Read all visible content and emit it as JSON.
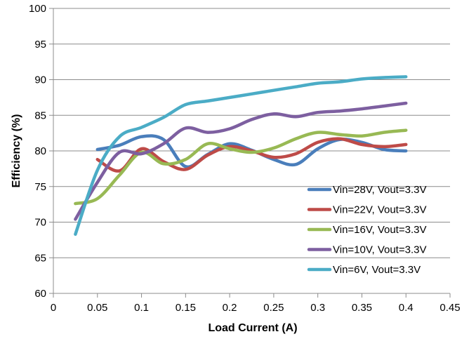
{
  "chart_data": {
    "type": "line",
    "title": "",
    "xlabel": "Load Current (A)",
    "ylabel": "Efficiency (%)",
    "xlim": [
      0,
      0.45
    ],
    "ylim": [
      60,
      100
    ],
    "x_ticks": [
      "0",
      "0.05",
      "0.1",
      "0.15",
      "0.2",
      "0.25",
      "0.3",
      "0.35",
      "0.4",
      "0.45"
    ],
    "y_ticks": [
      "60",
      "65",
      "70",
      "75",
      "80",
      "85",
      "90",
      "95",
      "100"
    ],
    "grid": "horizontal",
    "legend_position": "bottom-right",
    "series": [
      {
        "name": "Vin=28V, Vout=3.3V",
        "color": "#4A7EBB",
        "x": [
          0.05,
          0.075,
          0.1,
          0.125,
          0.15,
          0.175,
          0.2,
          0.225,
          0.25,
          0.275,
          0.3,
          0.325,
          0.35,
          0.375,
          0.4
        ],
        "y": [
          80.2,
          80.8,
          82.0,
          81.6,
          77.8,
          79.5,
          81.0,
          80.1,
          78.8,
          78.1,
          80.3,
          81.6,
          81.2,
          80.2,
          80.0
        ]
      },
      {
        "name": "Vin=22V, Vout=3.3V",
        "color": "#BE4B48",
        "x": [
          0.05,
          0.075,
          0.1,
          0.125,
          0.15,
          0.175,
          0.2,
          0.225,
          0.25,
          0.275,
          0.3,
          0.325,
          0.35,
          0.375,
          0.4
        ],
        "y": [
          78.8,
          77.2,
          80.3,
          78.5,
          77.4,
          79.4,
          80.6,
          80.0,
          79.1,
          79.6,
          81.2,
          81.7,
          80.9,
          80.6,
          80.9
        ]
      },
      {
        "name": "Vin=16V, Vout=3.3V",
        "color": "#98B954",
        "x": [
          0.025,
          0.05,
          0.075,
          0.1,
          0.125,
          0.15,
          0.175,
          0.2,
          0.225,
          0.25,
          0.275,
          0.3,
          0.325,
          0.35,
          0.375,
          0.4
        ],
        "y": [
          72.6,
          73.3,
          76.6,
          79.8,
          78.2,
          78.8,
          81.0,
          80.3,
          79.8,
          80.4,
          81.7,
          82.6,
          82.3,
          82.1,
          82.6,
          82.9
        ]
      },
      {
        "name": "Vin=10V, Vout=3.3V",
        "color": "#7D5FA0",
        "x": [
          0.025,
          0.05,
          0.075,
          0.1,
          0.125,
          0.15,
          0.175,
          0.2,
          0.225,
          0.25,
          0.275,
          0.3,
          0.325,
          0.35,
          0.375,
          0.4
        ],
        "y": [
          70.4,
          75.6,
          79.8,
          79.6,
          81.0,
          83.2,
          82.6,
          83.1,
          84.4,
          85.2,
          84.8,
          85.4,
          85.6,
          85.9,
          86.3,
          86.7
        ]
      },
      {
        "name": "Vin=6V, Vout=3.3V",
        "color": "#4BACC6",
        "x": [
          0.025,
          0.05,
          0.075,
          0.1,
          0.125,
          0.15,
          0.175,
          0.2,
          0.225,
          0.25,
          0.275,
          0.3,
          0.325,
          0.35,
          0.375,
          0.4
        ],
        "y": [
          68.3,
          77.3,
          82.0,
          83.3,
          84.7,
          86.5,
          87.0,
          87.5,
          88.0,
          88.5,
          89.0,
          89.5,
          89.7,
          90.1,
          90.3,
          90.4
        ]
      }
    ]
  }
}
